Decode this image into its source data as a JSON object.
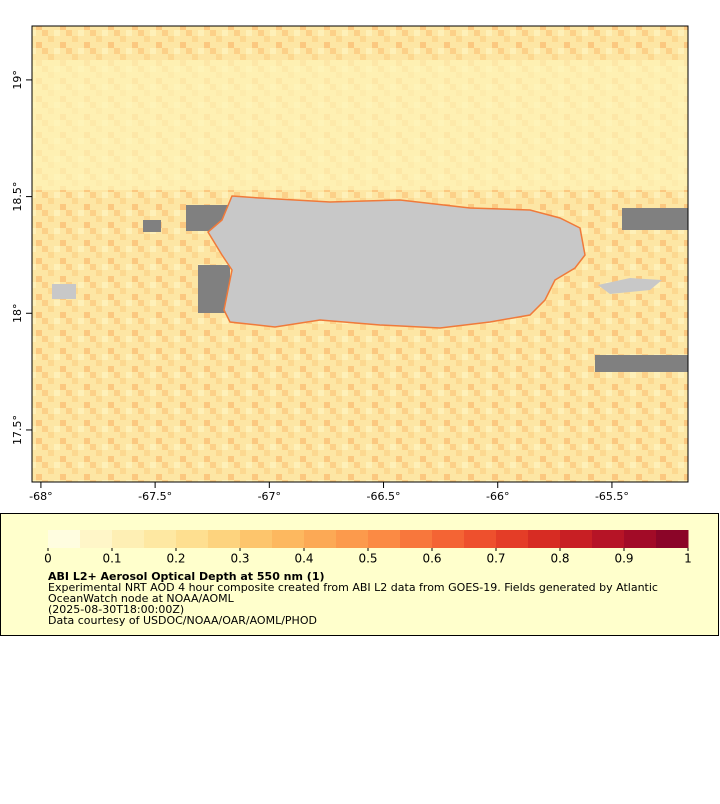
{
  "chart_data": {
    "type": "map",
    "xlim": [
      -68.039,
      -65.167
    ],
    "ylim": [
      17.277,
      19.231
    ],
    "xticks": [
      {
        "value": -68,
        "label": "-68°"
      },
      {
        "value": -67.5,
        "label": "-67.5°"
      },
      {
        "value": -67,
        "label": "-67°"
      },
      {
        "value": -66.5,
        "label": "-66.5°"
      },
      {
        "value": -66,
        "label": "-66°"
      },
      {
        "value": -65.5,
        "label": "-65.5°"
      }
    ],
    "yticks": [
      {
        "value": 17.5,
        "label": "17.5°"
      },
      {
        "value": 18,
        "label": "18°"
      },
      {
        "value": 18.5,
        "label": "18.5°"
      },
      {
        "value": 19,
        "label": "19°"
      }
    ],
    "colorbar": {
      "lim": [
        0,
        1
      ],
      "ticks": [
        0,
        0.1,
        0.2,
        0.3,
        0.4,
        0.5,
        0.6,
        0.7,
        0.8,
        0.9,
        1
      ],
      "colors": [
        "#fffde0",
        "#fff6c8",
        "#feefb4",
        "#fee8a2",
        "#fedf90",
        "#fdd37e",
        "#fdc56c",
        "#fdb85f",
        "#fca955",
        "#fc9a4c",
        "#fb8a44",
        "#f8773c",
        "#f46434",
        "#ee502d",
        "#e43d27",
        "#d72c23",
        "#c81f24",
        "#b61426",
        "#a20b27",
        "#8b0528"
      ]
    },
    "title": "ABI L2+ Aerosol Optical Depth at 550 nm (1)",
    "description": [
      "Experimental NRT AOD 4 hour composite created from ABI L2 data from GOES-19. Fields generated by Atlantic",
      "OceanWatch node at NOAA/AOML",
      "(2025-08-30T18:00:00Z)",
      "Data courtesy of USDOC/NOAA/OAR/AOML/PHOD"
    ]
  }
}
